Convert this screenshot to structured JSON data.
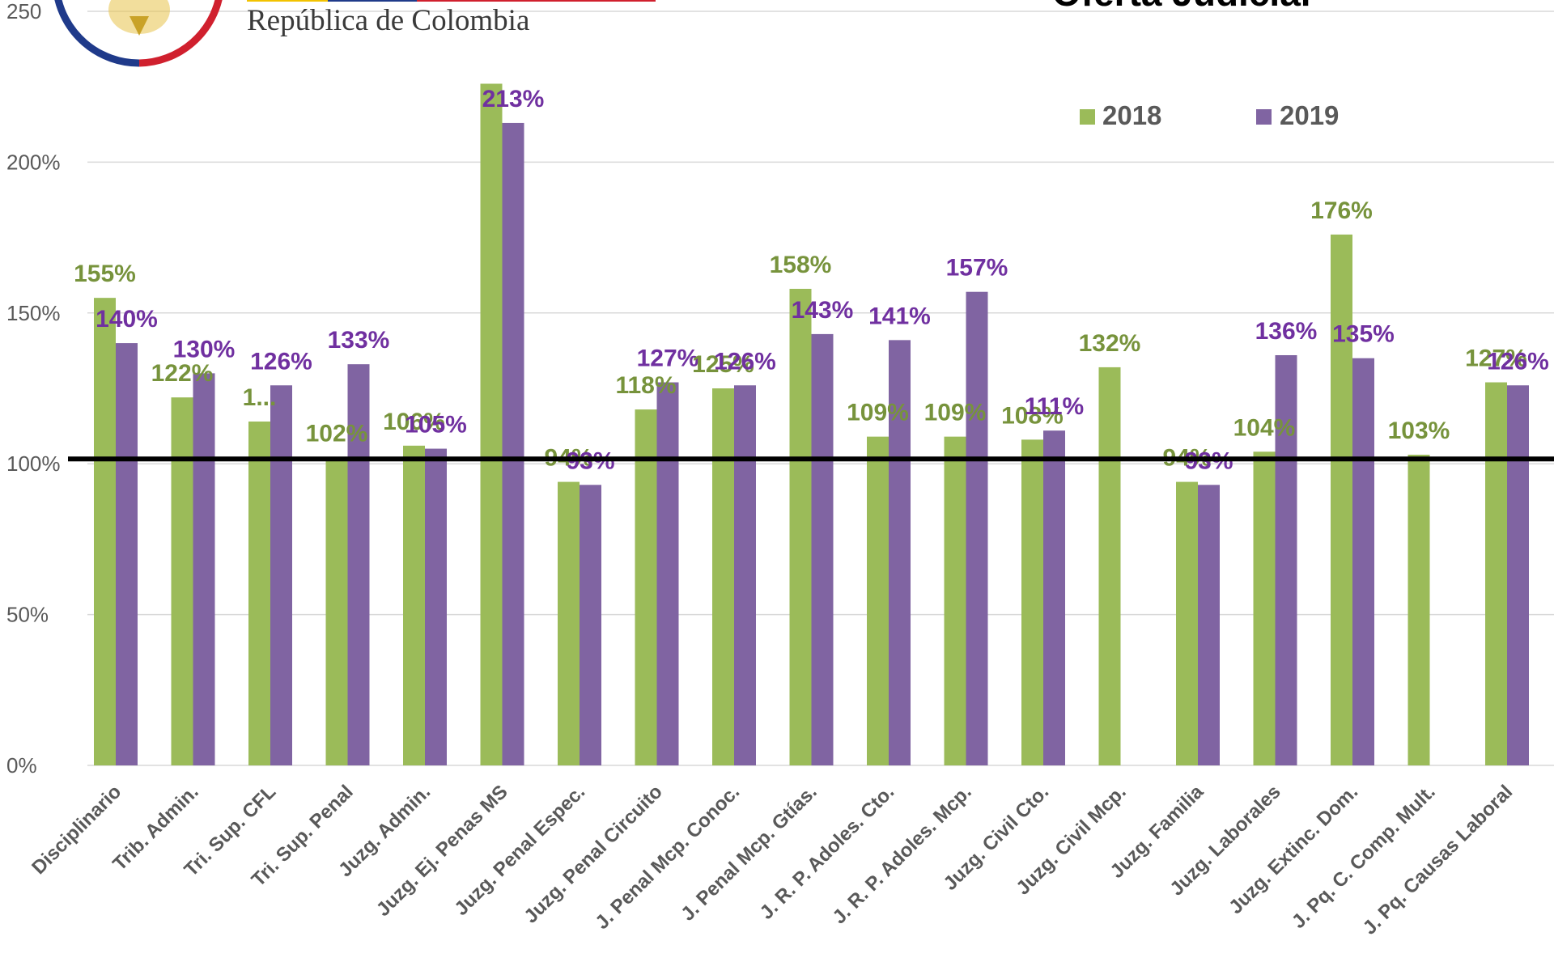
{
  "header": {
    "logo_text": "República de Colombia",
    "title": "Oferta Judicial"
  },
  "colors": {
    "series_2018": "#9bbb59",
    "series_2019": "#8064a2",
    "label_2018": "#77933c",
    "label_2019": "#7030a0",
    "grid": "#d9d9d9",
    "axis_text": "#595959",
    "reference_line": "#000000"
  },
  "chart_data": {
    "type": "bar",
    "title": "Oferta Judicial",
    "categories": [
      "Disciplinario",
      "Trib. Admin.",
      "Tri. Sup. CFL",
      "Tri. Sup. Penal",
      "Juzg. Admin.",
      "Juzg. Ej. Penas MS",
      "Juzg. Penal Espec.",
      "Juzg. Penal Circuito",
      "J. Penal Mcp. Conoc.",
      "J. Penal Mcp. Gtías.",
      "J. R. P. Adoles. Cto.",
      "J. R. P. Adoles. Mcp.",
      "Juzg. Civil Cto.",
      "Juzg. Civil Mcp.",
      "Juzg. Familia",
      "Juzg. Laborales",
      "Juzg. Extinc. Dom.",
      "J. Pq. C. Comp. Mult.",
      "J. Pq. Causas Laboral"
    ],
    "series": [
      {
        "name": "2018",
        "values": [
          155,
          122,
          114,
          102,
          106,
          226,
          94,
          118,
          125,
          158,
          109,
          109,
          108,
          132,
          94,
          104,
          176,
          103,
          127
        ],
        "labels": [
          "155%",
          "122%",
          "1...",
          "102%",
          "106%",
          "",
          "94%",
          "118%",
          "125%",
          "158%",
          "109%",
          "109%",
          "108%",
          "132%",
          "94%",
          "104%",
          "176%",
          "103%",
          "127%"
        ]
      },
      {
        "name": "2019",
        "values": [
          140,
          130,
          126,
          133,
          105,
          213,
          93,
          127,
          126,
          143,
          141,
          157,
          111,
          null,
          93,
          136,
          135,
          null,
          126
        ],
        "labels": [
          "140%",
          "130%",
          "126%",
          "133%",
          "105%",
          "213%",
          "93%",
          "127%",
          "126%",
          "143%",
          "141%",
          "157%",
          "111%",
          "",
          "93%",
          "136%",
          "135%",
          "",
          "126%"
        ]
      }
    ],
    "ylim": [
      0,
      250
    ],
    "yticks": [
      0,
      50,
      100,
      150,
      200,
      250
    ],
    "ytick_labels": [
      "0%",
      "50%",
      "100%",
      "150%",
      "200%",
      "250"
    ],
    "reference_line": 100,
    "legend": {
      "position": "top-right",
      "items": [
        "2018",
        "2019"
      ]
    },
    "grid": true,
    "xlabel": "",
    "ylabel": ""
  }
}
